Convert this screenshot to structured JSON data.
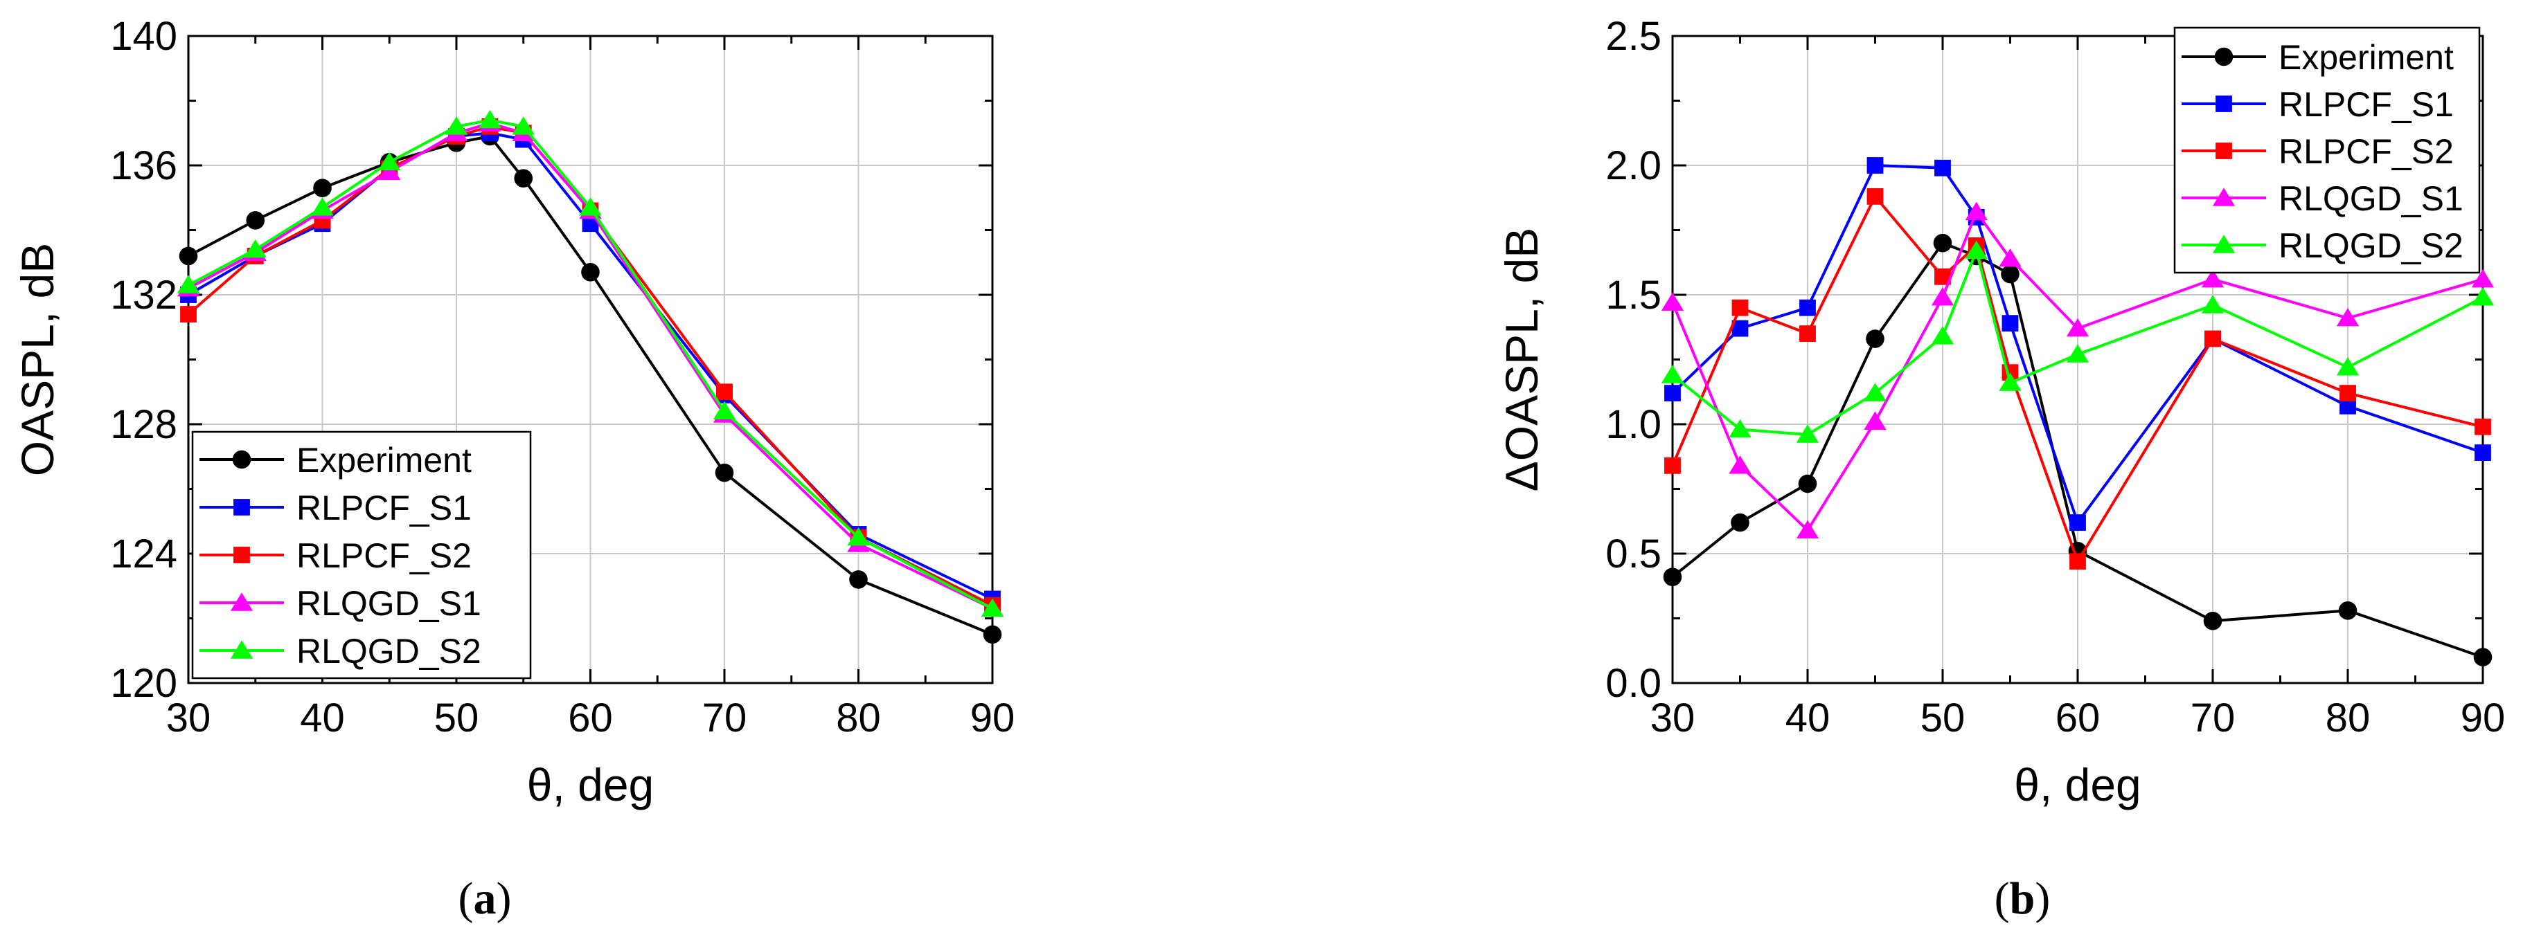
{
  "figure": {
    "panels": [
      {
        "label_open": "(",
        "label_letter": "a",
        "label_close": ")"
      },
      {
        "label_open": "(",
        "label_letter": "b",
        "label_close": ")"
      }
    ]
  },
  "styles": {
    "series": [
      {
        "name": "Experiment",
        "color": "#000000",
        "marker": "circle"
      },
      {
        "name": "RLPCF_S1",
        "color": "#0000ff",
        "marker": "square"
      },
      {
        "name": "RLPCF_S2",
        "color": "#ff0000",
        "marker": "square"
      },
      {
        "name": "RLQGD_S1",
        "color": "#ff00ff",
        "marker": "triangle"
      },
      {
        "name": "RLQGD_S2",
        "color": "#00ff00",
        "marker": "triangle"
      }
    ]
  },
  "chart_data": [
    {
      "type": "line",
      "xlabel": "θ, deg",
      "ylabel": "OASPL, dB",
      "xlim": [
        30,
        90
      ],
      "ylim": [
        120,
        140
      ],
      "xticks": [
        30,
        40,
        50,
        60,
        70,
        80,
        90
      ],
      "yticks": [
        120,
        124,
        128,
        132,
        136,
        140
      ],
      "grid": true,
      "legend_position": "bottom-left",
      "x": [
        30,
        35,
        40,
        45,
        50,
        52.5,
        55,
        60,
        70,
        80,
        90
      ],
      "series": [
        {
          "name": "Experiment",
          "values": [
            133.2,
            134.3,
            135.3,
            136.1,
            136.7,
            136.9,
            135.6,
            132.7,
            126.5,
            123.2,
            121.5
          ]
        },
        {
          "name": "RLPCF_S1",
          "values": [
            132.0,
            133.2,
            134.2,
            135.9,
            136.9,
            137.0,
            136.8,
            134.2,
            128.9,
            124.6,
            122.6
          ]
        },
        {
          "name": "RLPCF_S2",
          "values": [
            131.4,
            133.2,
            134.3,
            135.9,
            136.9,
            137.2,
            137.0,
            134.6,
            129.0,
            124.5,
            122.4
          ]
        },
        {
          "name": "RLQGD_S1",
          "values": [
            132.2,
            133.3,
            134.6,
            135.8,
            137.0,
            137.3,
            137.0,
            134.6,
            128.3,
            124.3,
            122.3
          ]
        },
        {
          "name": "RLQGD_S2",
          "values": [
            132.3,
            133.4,
            134.7,
            136.1,
            137.2,
            137.4,
            137.2,
            134.7,
            128.4,
            124.5,
            122.3
          ]
        }
      ]
    },
    {
      "type": "line",
      "xlabel": "θ, deg",
      "ylabel": "ΔOASPL, dB",
      "xlim": [
        30,
        90
      ],
      "ylim": [
        0,
        2.5
      ],
      "xticks": [
        30,
        40,
        50,
        60,
        70,
        80,
        90
      ],
      "yticks": [
        0.0,
        0.5,
        1.0,
        1.5,
        2.0,
        2.5
      ],
      "ytick_labels": [
        "0.0",
        "0.5",
        "1.0",
        "1.5",
        "2.0",
        "2.5"
      ],
      "grid": true,
      "legend_position": "top-right",
      "x": [
        30,
        35,
        40,
        45,
        50,
        52.5,
        55,
        60,
        70,
        80,
        90
      ],
      "series": [
        {
          "name": "Experiment",
          "values": [
            0.41,
            0.62,
            0.77,
            1.33,
            1.7,
            1.65,
            1.58,
            0.51,
            0.24,
            0.28,
            0.1
          ]
        },
        {
          "name": "RLPCF_S1",
          "values": [
            1.12,
            1.37,
            1.45,
            2.0,
            1.99,
            1.8,
            1.39,
            0.62,
            1.33,
            1.07,
            0.89
          ]
        },
        {
          "name": "RLPCF_S2",
          "values": [
            0.84,
            1.45,
            1.35,
            1.88,
            1.57,
            1.69,
            1.2,
            0.47,
            1.33,
            1.12,
            0.99
          ]
        },
        {
          "name": "RLQGD_S1",
          "values": [
            1.47,
            0.84,
            0.59,
            1.01,
            1.49,
            1.82,
            1.64,
            1.37,
            1.56,
            1.41,
            1.56
          ]
        },
        {
          "name": "RLQGD_S2",
          "values": [
            1.19,
            0.98,
            0.96,
            1.12,
            1.34,
            1.67,
            1.16,
            1.27,
            1.46,
            1.22,
            1.49
          ]
        }
      ]
    }
  ]
}
